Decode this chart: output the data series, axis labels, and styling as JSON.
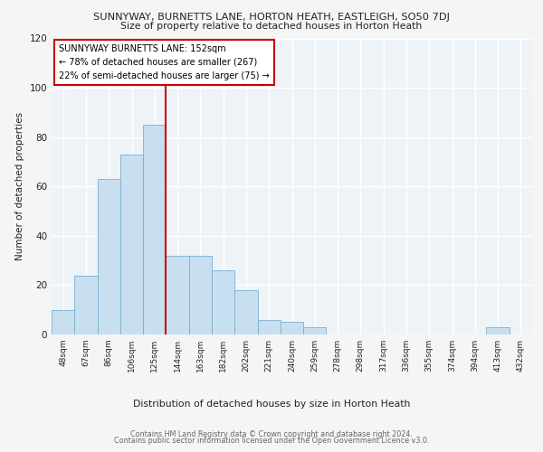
{
  "title": "SUNNYWAY, BURNETTS LANE, HORTON HEATH, EASTLEIGH, SO50 7DJ",
  "subtitle": "Size of property relative to detached houses in Horton Heath",
  "xlabel": "Distribution of detached houses by size in Horton Heath",
  "ylabel": "Number of detached properties",
  "categories": [
    "48sqm",
    "67sqm",
    "86sqm",
    "106sqm",
    "125sqm",
    "144sqm",
    "163sqm",
    "182sqm",
    "202sqm",
    "221sqm",
    "240sqm",
    "259sqm",
    "278sqm",
    "298sqm",
    "317sqm",
    "336sqm",
    "355sqm",
    "374sqm",
    "394sqm",
    "413sqm",
    "432sqm"
  ],
  "values": [
    10,
    24,
    63,
    73,
    85,
    32,
    32,
    26,
    18,
    6,
    5,
    3,
    0,
    0,
    0,
    0,
    0,
    0,
    0,
    3,
    0
  ],
  "bar_color": "#c8dff0",
  "bar_edge_color": "#7ab0d0",
  "subject_bin_index": 5,
  "annotation_line1": "SUNNYWAY BURNETTS LANE: 152sqm",
  "annotation_line2": "← 78% of detached houses are smaller (267)",
  "annotation_line3": "22% of semi-detached houses are larger (75) →",
  "annotation_box_color": "#ffffff",
  "annotation_border_color": "#cc0000",
  "background_color": "#eef3f8",
  "plot_bg_color": "#eef3f8",
  "grid_color": "#ffffff",
  "footer_line1": "Contains HM Land Registry data © Crown copyright and database right 2024.",
  "footer_line2": "Contains public sector information licensed under the Open Government Licence v3.0.",
  "ylim": [
    0,
    120
  ],
  "yticks": [
    0,
    20,
    40,
    60,
    80,
    100,
    120
  ]
}
